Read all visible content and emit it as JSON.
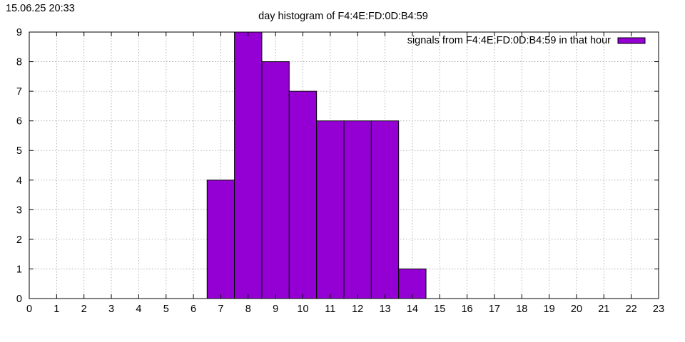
{
  "timestamp": "15.06.25 20:33",
  "chart_data": {
    "type": "bar",
    "title": "day histogram of F4:4E:FD:0D:B4:59",
    "xlabel": "",
    "ylabel": "",
    "xlim": [
      0,
      23
    ],
    "ylim": [
      0,
      9
    ],
    "x_ticks": [
      "0",
      "1",
      "2",
      "3",
      "4",
      "5",
      "6",
      "7",
      "8",
      "9",
      "10",
      "11",
      "12",
      "13",
      "14",
      "15",
      "16",
      "17",
      "18",
      "19",
      "20",
      "21",
      "22",
      "23"
    ],
    "y_ticks": [
      "0",
      "1",
      "2",
      "3",
      "4",
      "5",
      "6",
      "7",
      "8",
      "9"
    ],
    "grid": true,
    "legend_position": "top-right",
    "series": [
      {
        "name": "signals from F4:4E:FD:0D:B4:59 in that hour",
        "color": "#9400d3",
        "x": [
          7,
          8,
          9,
          10,
          11,
          12,
          13,
          14
        ],
        "values": [
          4,
          9,
          8,
          7,
          6,
          6,
          6,
          1
        ]
      }
    ]
  }
}
